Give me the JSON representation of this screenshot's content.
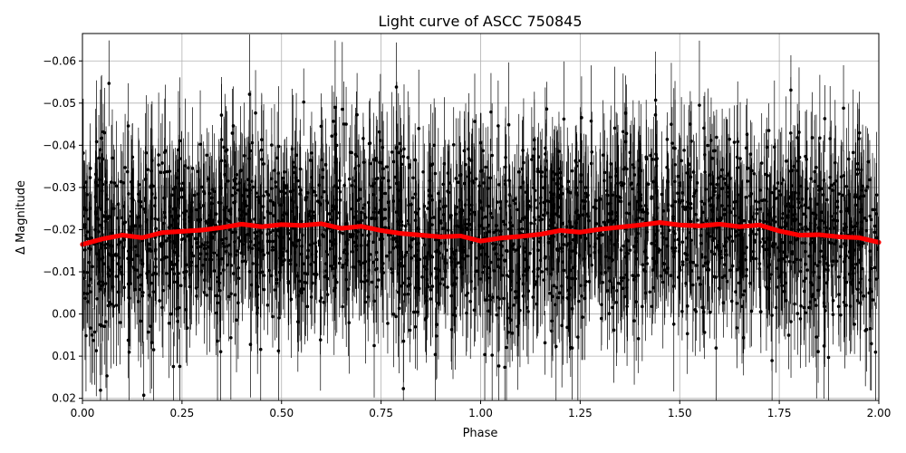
{
  "chart_data": {
    "type": "scatter",
    "title": "Light curve of ASCC 750845",
    "xlabel": "Phase",
    "ylabel": "Δ Magnitude",
    "xlim": [
      0.0,
      2.0
    ],
    "ylim": [
      0.0205,
      -0.0665
    ],
    "y_inverted": true,
    "grid": true,
    "x_ticks": [
      0.0,
      0.25,
      0.5,
      0.75,
      1.0,
      1.25,
      1.5,
      1.75,
      2.0
    ],
    "x_tick_labels": [
      "0.00",
      "0.25",
      "0.50",
      "0.75",
      "1.00",
      "1.25",
      "1.50",
      "1.75",
      "2.00"
    ],
    "y_ticks": [
      0.02,
      0.01,
      0.0,
      -0.01,
      -0.02,
      -0.03,
      -0.04,
      -0.05,
      -0.06
    ],
    "y_tick_labels": [
      "0.02",
      "0.01",
      "0.00",
      "−0.01",
      "−0.02",
      "−0.03",
      "−0.04",
      "−0.05",
      "−0.06"
    ],
    "colors": {
      "observations": "#000000",
      "binned": "#ff0000",
      "grid": "#b0b0b0"
    },
    "series": [
      {
        "role": "observations",
        "marker": "circle",
        "error_bars": true,
        "y_center_range": [
          -0.022,
          -0.016
        ],
        "y_scatter_sd": 0.011
      },
      {
        "role": "binned",
        "marker": "circle",
        "x": [
          0.0,
          0.05,
          0.1,
          0.15,
          0.2,
          0.25,
          0.3,
          0.35,
          0.4,
          0.45,
          0.5,
          0.55,
          0.6,
          0.65,
          0.7,
          0.75,
          0.8,
          0.85,
          0.9,
          0.95,
          1.0,
          1.05,
          1.1,
          1.15,
          1.2,
          1.25,
          1.3,
          1.35,
          1.4,
          1.45,
          1.5,
          1.55,
          1.6,
          1.65,
          1.7,
          1.75,
          1.8,
          1.85,
          1.9,
          1.95,
          2.0
        ],
        "y": [
          -0.0165,
          -0.0178,
          -0.0187,
          -0.0181,
          -0.0193,
          -0.0196,
          -0.0199,
          -0.0205,
          -0.0213,
          -0.0207,
          -0.0212,
          -0.021,
          -0.0214,
          -0.0203,
          -0.0208,
          -0.0198,
          -0.0191,
          -0.0187,
          -0.0183,
          -0.0185,
          -0.0173,
          -0.018,
          -0.0184,
          -0.0189,
          -0.0198,
          -0.0194,
          -0.0201,
          -0.0206,
          -0.0211,
          -0.0217,
          -0.0211,
          -0.0209,
          -0.0213,
          -0.0207,
          -0.0211,
          -0.0197,
          -0.0187,
          -0.0188,
          -0.0183,
          -0.0181,
          -0.017
        ]
      }
    ]
  }
}
